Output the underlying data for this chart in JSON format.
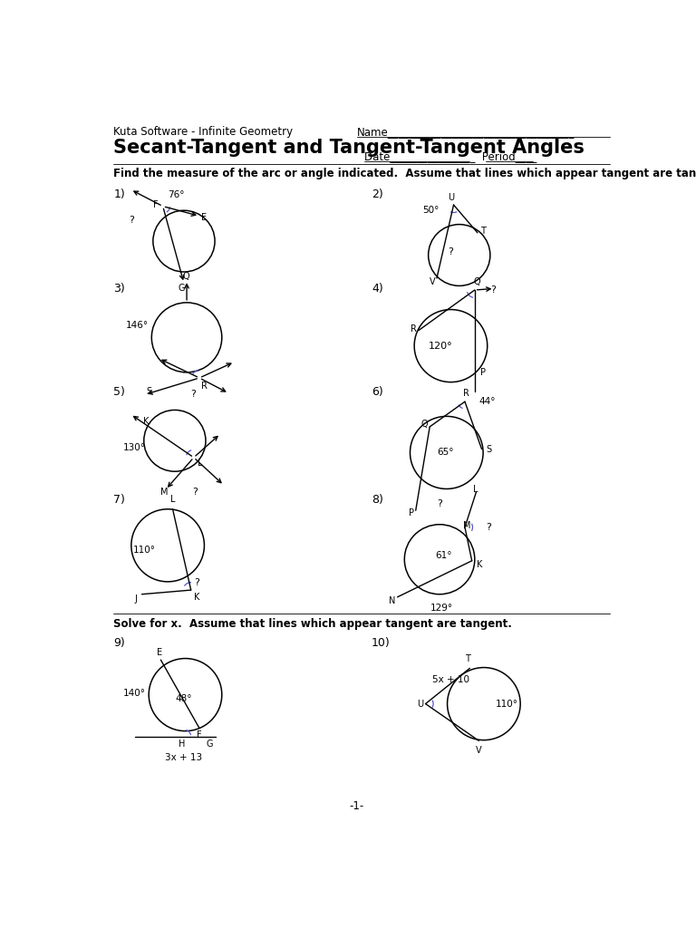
{
  "title": "Secant-Tangent and Tangent-Tangent Angles",
  "header": "Kuta Software - Infinite Geometry",
  "name_line": "Name___________________________________",
  "date_line": "Date________________  Period____",
  "instruction1": "Find the measure of the arc or angle indicated.  Assume that lines which appear tangent are tangent.",
  "instruction2": "Solve for x.  Assume that lines which appear tangent are tangent.",
  "page_number": "-1-",
  "background": "#ffffff",
  "text_color": "#000000",
  "accent_color": "#5555cc"
}
